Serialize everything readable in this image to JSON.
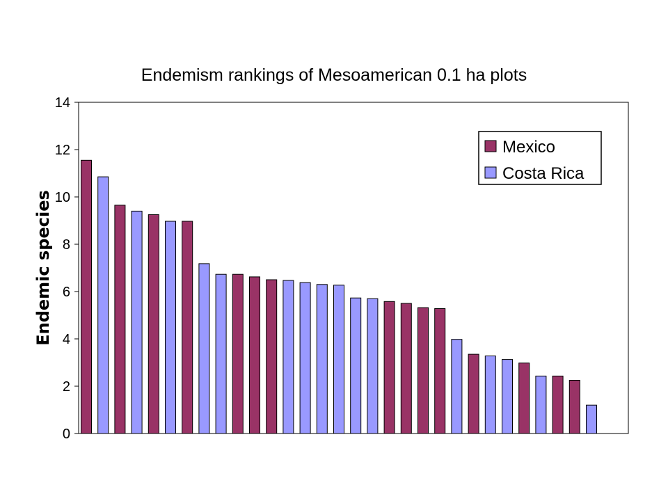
{
  "chart_data": {
    "type": "bar",
    "title": "Endemism rankings of Mesoamerican 0.1 ha plots",
    "xlabel": "",
    "ylabel": "Endemic species",
    "ylim": [
      0,
      14
    ],
    "yticks": [
      0,
      2,
      4,
      6,
      8,
      10,
      12,
      14
    ],
    "grid": false,
    "legend_position": "top-right",
    "series": [
      {
        "name": "Mexico",
        "color": "#993366"
      },
      {
        "name": "Costa Rica",
        "color": "#9999FF"
      }
    ],
    "bars": [
      {
        "series": "Mexico",
        "value": 11.55
      },
      {
        "series": "Costa Rica",
        "value": 10.85
      },
      {
        "series": "Mexico",
        "value": 9.65
      },
      {
        "series": "Costa Rica",
        "value": 9.4
      },
      {
        "series": "Mexico",
        "value": 9.25
      },
      {
        "series": "Costa Rica",
        "value": 8.97
      },
      {
        "series": "Mexico",
        "value": 8.97
      },
      {
        "series": "Costa Rica",
        "value": 7.18
      },
      {
        "series": "Costa Rica",
        "value": 6.73
      },
      {
        "series": "Mexico",
        "value": 6.73
      },
      {
        "series": "Mexico",
        "value": 6.62
      },
      {
        "series": "Mexico",
        "value": 6.5
      },
      {
        "series": "Costa Rica",
        "value": 6.47
      },
      {
        "series": "Costa Rica",
        "value": 6.38
      },
      {
        "series": "Costa Rica",
        "value": 6.3
      },
      {
        "series": "Costa Rica",
        "value": 6.27
      },
      {
        "series": "Costa Rica",
        "value": 5.73
      },
      {
        "series": "Costa Rica",
        "value": 5.7
      },
      {
        "series": "Mexico",
        "value": 5.58
      },
      {
        "series": "Mexico",
        "value": 5.5
      },
      {
        "series": "Mexico",
        "value": 5.32
      },
      {
        "series": "Mexico",
        "value": 5.28
      },
      {
        "series": "Costa Rica",
        "value": 3.98
      },
      {
        "series": "Mexico",
        "value": 3.35
      },
      {
        "series": "Costa Rica",
        "value": 3.28
      },
      {
        "series": "Costa Rica",
        "value": 3.13
      },
      {
        "series": "Mexico",
        "value": 2.98
      },
      {
        "series": "Costa Rica",
        "value": 2.43
      },
      {
        "series": "Mexico",
        "value": 2.43
      },
      {
        "series": "Mexico",
        "value": 2.25
      },
      {
        "series": "Costa Rica",
        "value": 1.2
      }
    ]
  }
}
